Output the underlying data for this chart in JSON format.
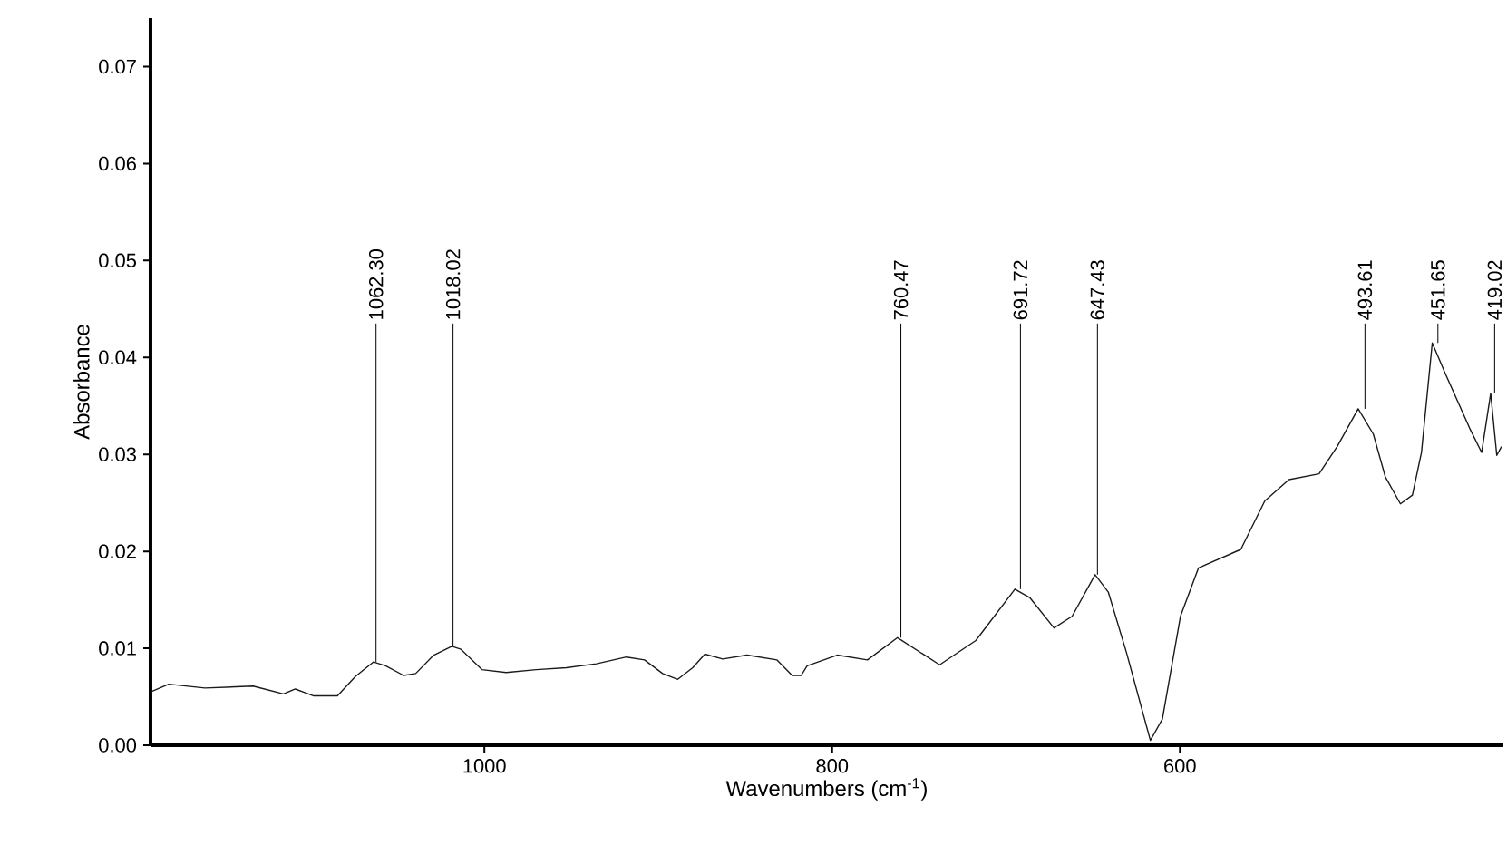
{
  "chart_data": {
    "type": "line",
    "xlabel": "Wavenumbers (cm$^{-1}$)",
    "ylabel": "Absorbance",
    "color": "#1a1a1a",
    "x": [
      1191.9,
      1181.5,
      1160.7,
      1133,
      1115.6,
      1108.7,
      1098.4,
      1084.5,
      1074.1,
      1063.7,
      1056.8,
      1046.4,
      1039.5,
      1029.1,
      1018.7,
      1013.5,
      1001.4,
      987.5,
      970.2,
      952.9,
      935.6,
      918.3,
      907.9,
      897.5,
      888.8,
      880.2,
      873.2,
      862.9,
      849,
      831.7,
      823,
      817.8,
      814.4,
      797.1,
      779.7,
      762.4,
      738.2,
      717.4,
      694.9,
      686.2,
      672.4,
      662,
      648.8,
      641.2,
      630.8,
      617,
      610.1,
      599.7,
      589.3,
      565,
      551.2,
      537.3,
      520,
      509.6,
      497.5,
      488.8,
      481.9,
      473.2,
      466.3,
      461.1,
      454.9,
      447.3,
      433.4,
      426.5,
      421.3,
      417.8,
      415.1
    ],
    "values": [
      0.0055,
      0.0063,
      0.0059,
      0.0061,
      0.0053,
      0.0058,
      0.0051,
      0.0051,
      0.0071,
      0.0086,
      0.0082,
      0.0072,
      0.0074,
      0.0093,
      0.0102,
      0.0099,
      0.0078,
      0.0075,
      0.0078,
      0.008,
      0.0084,
      0.0091,
      0.0088,
      0.0074,
      0.0068,
      0.008,
      0.0094,
      0.0089,
      0.0093,
      0.0088,
      0.0072,
      0.0072,
      0.0082,
      0.0093,
      0.0088,
      0.0111,
      0.0083,
      0.0108,
      0.0161,
      0.0152,
      0.0121,
      0.0133,
      0.0176,
      0.0158,
      0.0096,
      0.0005,
      0.0027,
      0.0133,
      0.0183,
      0.0202,
      0.0252,
      0.0274,
      0.028,
      0.0308,
      0.0347,
      0.0321,
      0.0277,
      0.0249,
      0.0258,
      0.0302,
      0.0415,
      0.0383,
      0.0327,
      0.0302,
      0.0363,
      0.0299,
      0.0308
    ],
    "xlim": [
      1192,
      414
    ],
    "ylim": [
      0,
      0.075
    ],
    "xticks": [
      1000,
      800,
      600
    ],
    "yticks": [
      {
        "value": 0,
        "label": "0.00"
      },
      0.01,
      0.02,
      0.03,
      0.04,
      0.05,
      0.06,
      0.07
    ],
    "annotations": [
      {
        "text": "1062.30",
        "x": 1062.3,
        "y": 0.0086
      },
      {
        "text": "1018.02",
        "x": 1018.02,
        "y": 0.0102
      },
      {
        "text": "760.47",
        "x": 760.47,
        "y": 0.0111
      },
      {
        "text": "691.72",
        "x": 691.72,
        "y": 0.0161
      },
      {
        "text": "647.43",
        "x": 647.43,
        "y": 0.0176
      },
      {
        "text": "493.61",
        "x": 493.61,
        "y": 0.0347
      },
      {
        "text": "451.65",
        "x": 451.65,
        "y": 0.0415
      },
      {
        "text": "419.02",
        "x": 419.02,
        "y": 0.0363
      }
    ]
  }
}
